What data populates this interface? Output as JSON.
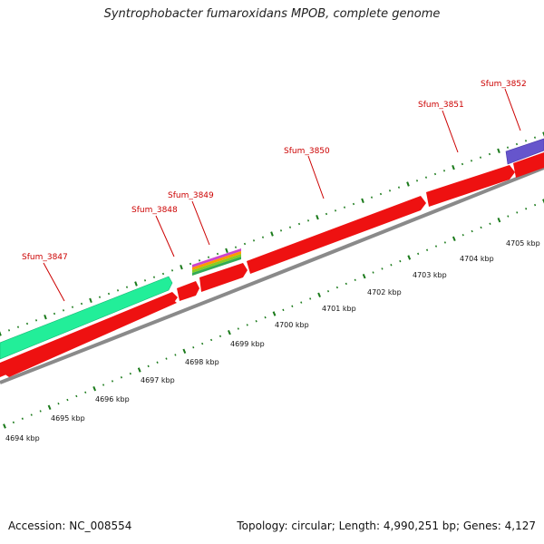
{
  "title": "Syntrophobacter fumaroxidans MPOB, complete genome",
  "footer": {
    "accession": "Accession: NC_008554",
    "summary": "Topology: circular; Length: 4,990,251 bp; Genes: 4,127"
  },
  "colors": {
    "cds": "#ee1111",
    "backbone": "#8a8a8a",
    "gene_label": "#cc0000",
    "tick": "#1a7a1a",
    "gene_3847": "#22ee99",
    "gene_3852": "#6655cc"
  },
  "genes": [
    {
      "name": "Sfum_3847"
    },
    {
      "name": "Sfum_3848"
    },
    {
      "name": "Sfum_3849"
    },
    {
      "name": "Sfum_3850"
    },
    {
      "name": "Sfum_3851"
    },
    {
      "name": "Sfum_3852"
    }
  ],
  "kbp_labels": [
    "4694 kbp",
    "4695 kbp",
    "4696 kbp",
    "4697 kbp",
    "4698 kbp",
    "4699 kbp",
    "4700 kbp",
    "4701 kbp",
    "4702 kbp",
    "4703 kbp",
    "4704 kbp",
    "4705 kbp"
  ]
}
